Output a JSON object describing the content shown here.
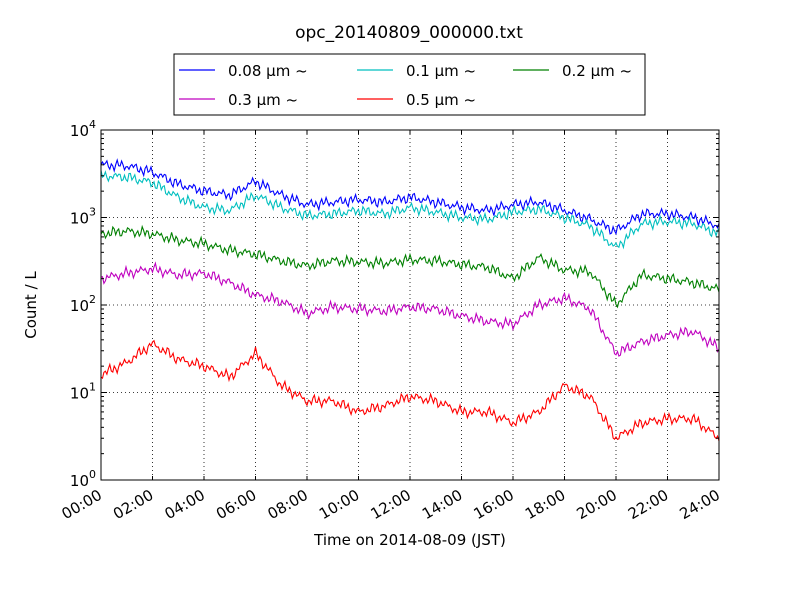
{
  "chart_data": {
    "type": "line",
    "title": "opc_20140809_000000.txt",
    "xlabel": "Time on 2014-08-09 (JST)",
    "ylabel": "Count / L",
    "x_unit": "time of day (hours)",
    "xlim": [
      "00:00",
      "24:00"
    ],
    "ylim": [
      1,
      10000
    ],
    "y_scale": "log",
    "grid": true,
    "legend_position": "top-center",
    "x_ticks": [
      "00:00",
      "02:00",
      "04:00",
      "06:00",
      "08:00",
      "10:00",
      "12:00",
      "14:00",
      "16:00",
      "18:00",
      "20:00",
      "22:00",
      "24:00"
    ],
    "y_ticks": [
      {
        "base": "10",
        "exp": "0",
        "value": 1
      },
      {
        "base": "10",
        "exp": "1",
        "value": 10
      },
      {
        "base": "10",
        "exp": "2",
        "value": 100
      },
      {
        "base": "10",
        "exp": "3",
        "value": 1000
      },
      {
        "base": "10",
        "exp": "4",
        "value": 10000
      }
    ],
    "x": [
      "00:00",
      "01:00",
      "02:00",
      "03:00",
      "04:00",
      "05:00",
      "06:00",
      "07:00",
      "08:00",
      "09:00",
      "10:00",
      "11:00",
      "12:00",
      "13:00",
      "14:00",
      "15:00",
      "16:00",
      "17:00",
      "18:00",
      "19:00",
      "20:00",
      "21:00",
      "22:00",
      "23:00",
      "24:00"
    ],
    "series": [
      {
        "name": "0.08 μm ~",
        "color": "#0000ff",
        "values": [
          4000,
          3900,
          3300,
          2400,
          2000,
          1800,
          2600,
          1800,
          1400,
          1500,
          1600,
          1500,
          1700,
          1500,
          1300,
          1200,
          1400,
          1500,
          1200,
          950,
          700,
          1100,
          1100,
          1000,
          800
        ]
      },
      {
        "name": "0.1 μm ~",
        "color": "#00bfbf",
        "values": [
          3000,
          2900,
          2500,
          1700,
          1300,
          1200,
          1800,
          1300,
          1050,
          1100,
          1200,
          1100,
          1300,
          1150,
          1000,
          950,
          1150,
          1250,
          1000,
          800,
          450,
          850,
          900,
          850,
          650
        ]
      },
      {
        "name": "0.2 μm ~",
        "color": "#008000",
        "values": [
          650,
          700,
          650,
          550,
          500,
          420,
          380,
          320,
          280,
          320,
          310,
          300,
          330,
          320,
          290,
          270,
          200,
          350,
          250,
          240,
          100,
          220,
          200,
          180,
          150
        ]
      },
      {
        "name": "0.3 μm ~",
        "color": "#bf00bf",
        "values": [
          200,
          230,
          260,
          220,
          230,
          180,
          130,
          110,
          80,
          95,
          90,
          85,
          95,
          90,
          75,
          65,
          60,
          100,
          120,
          90,
          28,
          38,
          45,
          50,
          32
        ]
      },
      {
        "name": "0.5 μm ~",
        "color": "#ff0000",
        "values": [
          16,
          22,
          36,
          24,
          20,
          15,
          28,
          12,
          8,
          8,
          6,
          7,
          9,
          8,
          6,
          6,
          4.5,
          6,
          12,
          9,
          3,
          4.5,
          5,
          5,
          3
        ]
      }
    ]
  }
}
